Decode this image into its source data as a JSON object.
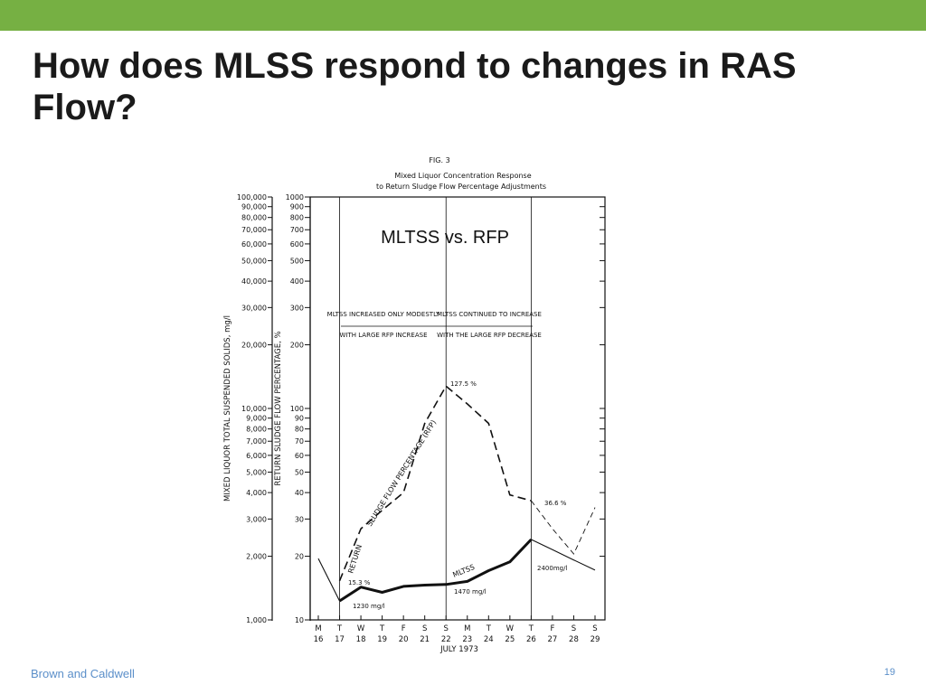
{
  "slide": {
    "title": "How does MLSS respond to changes in RAS Flow?",
    "footer_left": "Brown and Caldwell",
    "page_number": "19",
    "accent_color": "#76b043"
  },
  "chart_data": {
    "type": "line",
    "figure_label": "FIG. 3",
    "title_line1": "Mixed Liquor Concentration Response",
    "title_line2": "to Return Sludge Flow Percentage Adjustments",
    "inner_title": "MLTSS vs. RFP",
    "xlabel": "JULY 1973",
    "y_left_label": "MIXED LIQUOR TOTAL SUSPENDED SOLIDS, mg/l",
    "y_right_label": "RETURN SLUDGE FLOW PERCENTAGE, %",
    "y_scale": "log",
    "y_left_range": [
      1000,
      100000
    ],
    "y_right_range": [
      10,
      1000
    ],
    "y_left_ticks": [
      "1,000",
      "2,000",
      "3,000",
      "4,000",
      "5,000",
      "6,000",
      "7,000",
      "8,000",
      "9,000",
      "10,000",
      "20,000",
      "30,000",
      "40,000",
      "50,000",
      "60,000",
      "70,000",
      "80,000",
      "90,000",
      "100,000"
    ],
    "y_right_ticks": [
      "10",
      "20",
      "30",
      "40",
      "50",
      "60",
      "70",
      "80",
      "90",
      "100",
      "200",
      "300",
      "400",
      "500",
      "600",
      "700",
      "800",
      "900",
      "1000"
    ],
    "x_days": [
      "M",
      "T",
      "W",
      "T",
      "F",
      "S",
      "S",
      "M",
      "T",
      "W",
      "T",
      "F",
      "S",
      "S"
    ],
    "x_dates": [
      "16",
      "17",
      "18",
      "19",
      "20",
      "21",
      "22",
      "23",
      "24",
      "25",
      "26",
      "27",
      "28",
      "29"
    ],
    "series": [
      {
        "name": "MLTSS",
        "axis": "left",
        "style": "solid",
        "x": [
          16,
          17,
          18,
          19,
          20,
          21,
          22,
          23,
          24,
          25,
          26,
          27,
          28,
          29
        ],
        "y": [
          1950,
          1230,
          1430,
          1350,
          1440,
          1460,
          1470,
          1520,
          1710,
          1880,
          2400,
          2150,
          1920,
          1720
        ]
      },
      {
        "name": "RETURN SLUDGE FLOW PERCENTAGE (RFP)",
        "axis": "right",
        "style": "dashed",
        "x": [
          17,
          18,
          19,
          20,
          21,
          22,
          23,
          24,
          25,
          26,
          27,
          28,
          29
        ],
        "y": [
          15.3,
          27,
          33,
          40,
          85,
          127.5,
          105,
          85,
          39,
          36.6,
          27,
          20.5,
          34
        ]
      }
    ],
    "vertical_lines_at": [
      17,
      22,
      26
    ],
    "annotations": {
      "left_box_top": "MLTSS INCREASED ONLY MODESTLY",
      "left_box_bottom": "WITH LARGE RFP INCREASE",
      "right_box_top": "MLTSS CONTINUED TO INCREASE",
      "right_box_bottom": "WITH THE LARGE RFP DECREASE",
      "rfp_peak": "127.5 %",
      "rfp_start": "15.3 %",
      "rfp_end": "36.6 %",
      "mltss_start": "1230 mg/l",
      "mltss_mid": "1470 mg/l",
      "mltss_end": "2400mg/l",
      "return_curve_label": "RETURN",
      "rfp_curve_label": "SLUDGE FLOW PERCENTAGE (RFP)",
      "mltss_curve_label": "MLTSS"
    }
  }
}
